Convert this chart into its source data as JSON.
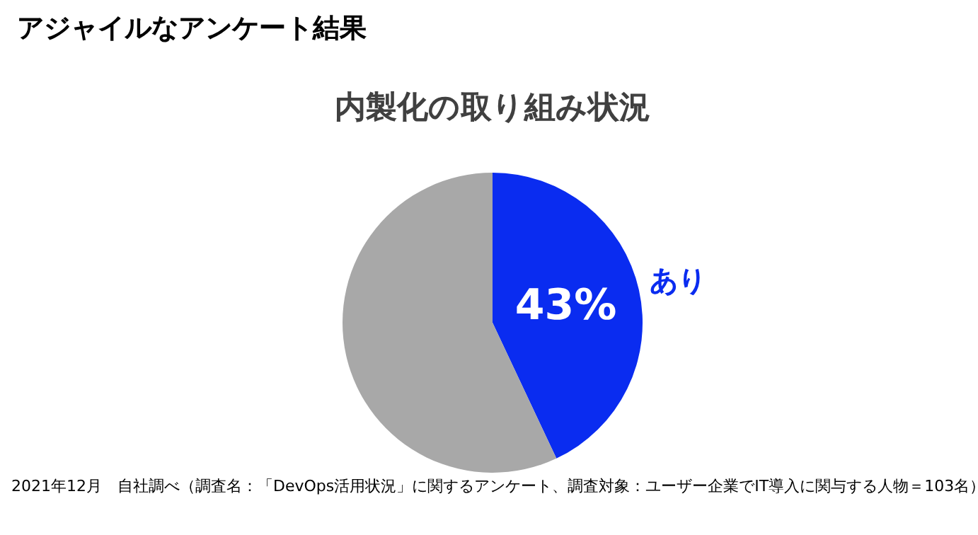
{
  "chart_data": {
    "type": "pie",
    "title": "内製化の取り組み状況",
    "categories": [
      "あり",
      null
    ],
    "values": [
      43,
      57
    ],
    "colors": [
      "#0a2cf0",
      "#a8a8a8"
    ],
    "value_labels": [
      "43%",
      null
    ],
    "annotations": [
      "アジャイルなアンケート結果",
      "2021年12月　自社調べ（調査名：「DevOps活用状況」に関するアンケート、調査対象：ユーザー企業でIT導入に関与する人物＝103名）"
    ]
  }
}
